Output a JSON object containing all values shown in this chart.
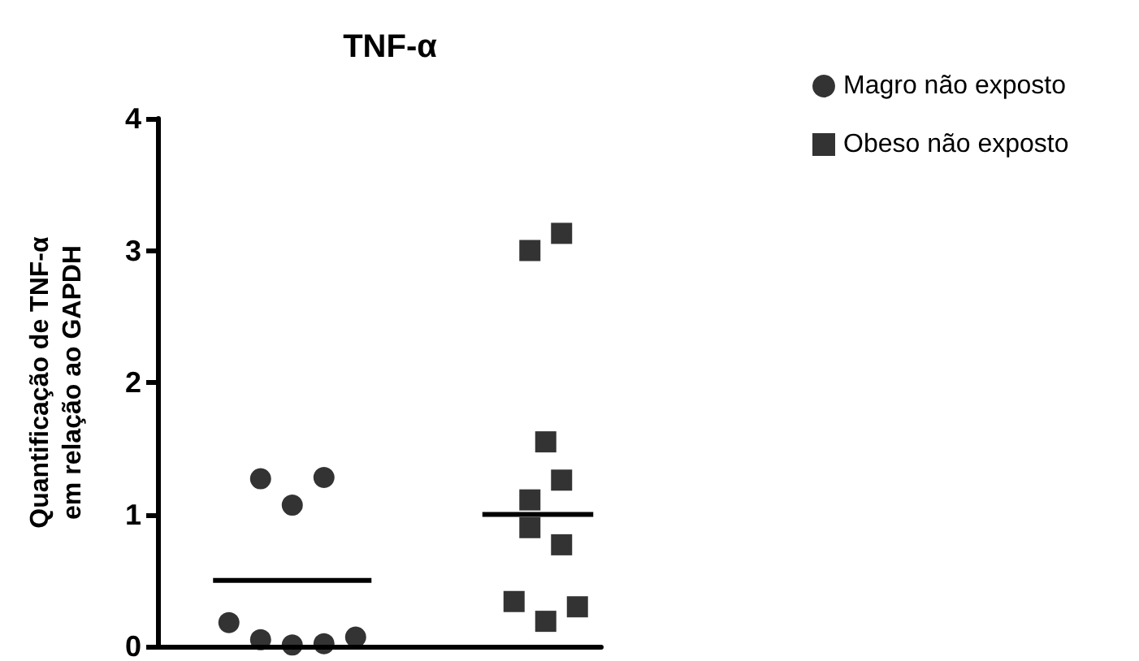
{
  "chart_data": {
    "type": "scatter",
    "title": "TNF-α",
    "ylabel": "Quantificação de TNF-α\nem relação ao GAPDH",
    "categories": [
      null,
      null,
      null,
      null,
      null,
      null,
      null,
      null,
      null,
      null,
      null,
      null,
      null,
      null,
      null,
      null,
      null,
      null,
      null,
      null,
      null,
      null,
      null,
      null,
      null,
      null,
      null,
      null
    ],
    "ylim": [
      0,
      4
    ],
    "yticks": [
      0,
      1,
      2,
      3,
      4
    ],
    "grid": false,
    "legend": "top right",
    "series": [
      {
        "name": "Magro não exposto",
        "color": "#000000",
        "marker": "circle",
        "values": [
          null,
          null,
          null,
          null,
          0.18,
          null,
          1.27,
          null,
          1.07,
          null,
          1.28,
          null,
          0.07,
          null,
          null,
          null,
          null,
          null,
          null,
          null,
          null,
          null,
          null,
          null,
          null,
          null,
          null,
          null
        ]
      },
      {
        "color": "#000000",
        "marker": "circle",
        "values": [
          null,
          null,
          null,
          null,
          null,
          null,
          0.05,
          null,
          0.01,
          null,
          0.02,
          null,
          null,
          null,
          null,
          null,
          null,
          null,
          null,
          null,
          null,
          null,
          null,
          null,
          null,
          null,
          null,
          null
        ]
      },
      {
        "name": "Obeso não exposto",
        "color": "#000000",
        "marker": "square",
        "values": [
          null,
          null,
          null,
          null,
          null,
          null,
          null,
          null,
          null,
          null,
          null,
          null,
          null,
          null,
          null,
          null,
          null,
          null,
          null,
          null,
          null,
          null,
          0.34,
          3.0,
          1.55,
          3.13,
          0.3,
          null
        ]
      },
      {
        "color": "#000000",
        "marker": "square",
        "values": [
          null,
          null,
          null,
          null,
          null,
          null,
          null,
          null,
          null,
          null,
          null,
          null,
          null,
          null,
          null,
          null,
          null,
          null,
          null,
          null,
          null,
          null,
          null,
          1.11,
          0.19,
          1.26,
          null,
          null
        ]
      },
      {
        "color": "#000000",
        "marker": "square",
        "values": [
          null,
          null,
          null,
          null,
          null,
          null,
          null,
          null,
          null,
          null,
          null,
          null,
          null,
          null,
          null,
          null,
          null,
          null,
          null,
          null,
          null,
          null,
          null,
          0.9,
          null,
          0.77,
          null,
          null
        ]
      },
      {
        "type": "line",
        "color": "#000000",
        "marker": "none",
        "line_style": "solid",
        "values": [
          null,
          null,
          null,
          0.5,
          0.5,
          0.5,
          0.5,
          0.5,
          0.5,
          0.5,
          0.5,
          0.5,
          0.5,
          0.5,
          null,
          null,
          null,
          null,
          null,
          null,
          null,
          null,
          null,
          null,
          null,
          null,
          null,
          null
        ]
      },
      {
        "type": "line",
        "color": "#000000",
        "marker": "none",
        "line_style": "solid",
        "values": [
          null,
          null,
          null,
          null,
          null,
          null,
          null,
          null,
          null,
          null,
          null,
          null,
          null,
          null,
          null,
          null,
          null,
          null,
          null,
          null,
          1.0,
          1.0,
          1.0,
          1.0,
          1.0,
          1.0,
          1.0,
          1.0
        ]
      }
    ]
  }
}
